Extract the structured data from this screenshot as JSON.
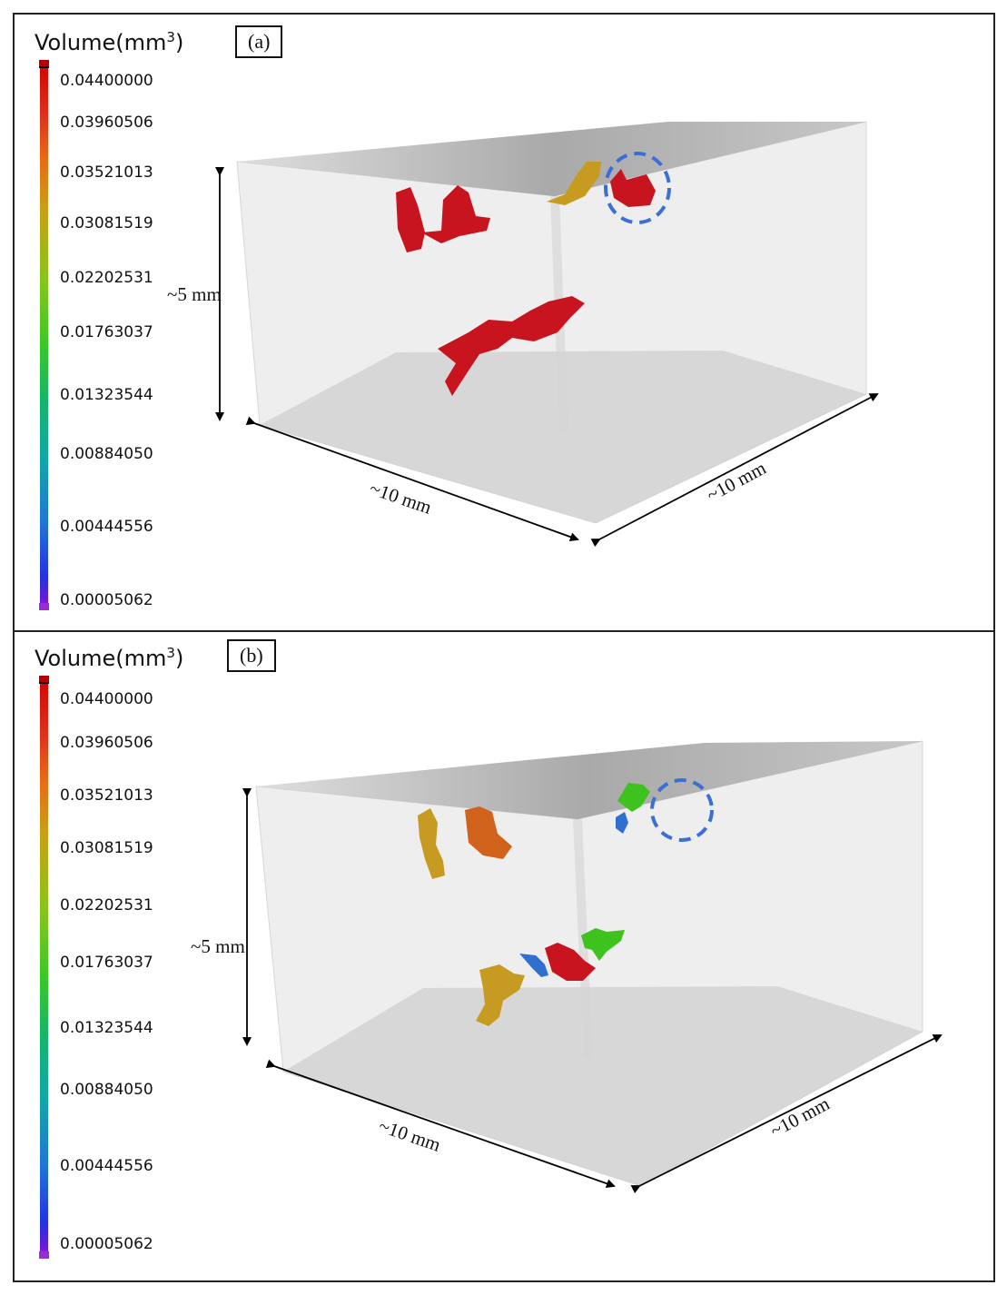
{
  "colorbar": {
    "title_prefix": "Volume(mm",
    "title_exp": "3",
    "title_suffix": ")",
    "ticks": [
      "0.04400000",
      "0.03960506",
      "0.03521013",
      "0.03081519",
      "0.02202531",
      "0.01763037",
      "0.01323544",
      "0.00884050",
      "0.00444556",
      "0.00005062"
    ]
  },
  "panel_a": {
    "tag": "(a)",
    "height_label": "~5 mm",
    "length_label": "~10 mm",
    "depth_label": "~10 mm"
  },
  "panel_b": {
    "tag": "(b)",
    "height_label": "~5 mm",
    "length_label": "~10 mm",
    "depth_label": "~10 mm"
  },
  "colors": {
    "red": "#c8141e",
    "orange": "#d0621c",
    "gold": "#c79a22",
    "green": "#3dc21e",
    "blue": "#2f6fd0",
    "ring": "#3b6fd6"
  }
}
